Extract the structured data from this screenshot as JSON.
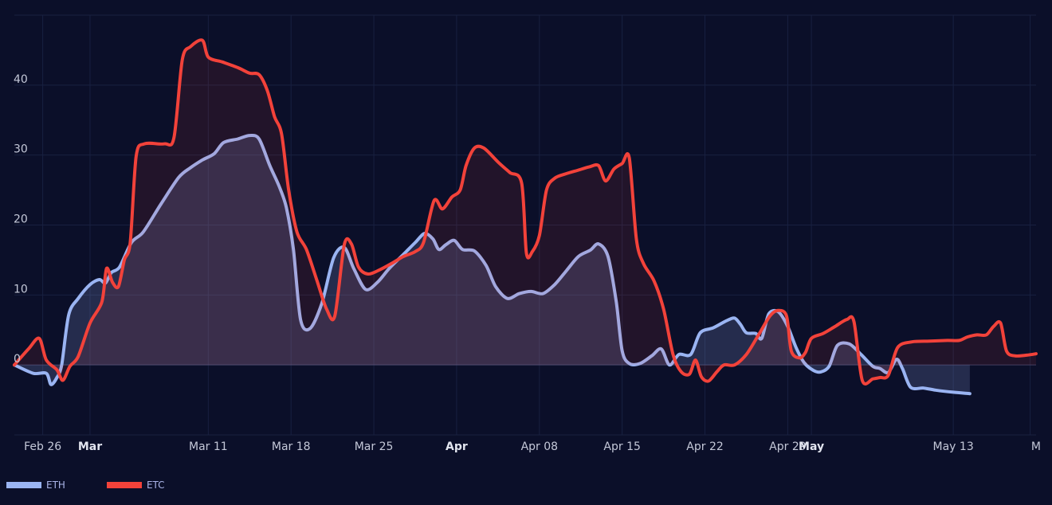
{
  "chart_data": {
    "type": "area",
    "x_tick_labels": [
      {
        "label": "Feb 26",
        "day": 0,
        "bold": false
      },
      {
        "label": "Mar",
        "day": 4,
        "bold": true
      },
      {
        "label": "Mar 11",
        "day": 14,
        "bold": false
      },
      {
        "label": "Mar 18",
        "day": 21,
        "bold": false
      },
      {
        "label": "Mar 25",
        "day": 28,
        "bold": false
      },
      {
        "label": "Apr",
        "day": 35,
        "bold": true
      },
      {
        "label": "Apr 08",
        "day": 42,
        "bold": false
      },
      {
        "label": "Apr 15",
        "day": 49,
        "bold": false
      },
      {
        "label": "Apr 22",
        "day": 56,
        "bold": false
      },
      {
        "label": "Apr 29",
        "day": 63,
        "bold": false
      },
      {
        "label": "May",
        "day": 65,
        "bold": true
      },
      {
        "label": "May 13",
        "day": 77,
        "bold": false
      },
      {
        "label": "M",
        "day": 83.5,
        "bold": false
      }
    ],
    "y_ticks": [
      0,
      10,
      20,
      30,
      40
    ],
    "xlim": [
      -2.4,
      84
    ],
    "ylim": [
      -10,
      50
    ],
    "grid": true,
    "legend_position": "bottom-left",
    "series": [
      {
        "name": "ETH",
        "color": "#9ab4f2",
        "fill": "rgba(154,180,242,0.18)",
        "points": [
          [
            -2.4,
            0.0
          ],
          [
            -0.8,
            -1.2
          ],
          [
            0.3,
            -1.2
          ],
          [
            0.7,
            -2.8
          ],
          [
            1.2,
            -1.8
          ],
          [
            1.6,
            0.0
          ],
          [
            2.2,
            7.2
          ],
          [
            3.0,
            9.5
          ],
          [
            4.0,
            11.5
          ],
          [
            4.8,
            12.2
          ],
          [
            5.3,
            11.7
          ],
          [
            5.8,
            13.2
          ],
          [
            6.5,
            14.0
          ],
          [
            7.5,
            17.5
          ],
          [
            8.5,
            19.0
          ],
          [
            10.0,
            23.0
          ],
          [
            11.5,
            26.8
          ],
          [
            12.5,
            28.2
          ],
          [
            13.5,
            29.3
          ],
          [
            14.5,
            30.2
          ],
          [
            15.3,
            31.8
          ],
          [
            16.5,
            32.3
          ],
          [
            17.5,
            32.8
          ],
          [
            18.3,
            32.3
          ],
          [
            19.2,
            28.5
          ],
          [
            20.0,
            25.5
          ],
          [
            20.6,
            22.5
          ],
          [
            21.2,
            16.5
          ],
          [
            21.8,
            6.5
          ],
          [
            22.6,
            5.2
          ],
          [
            23.6,
            8.8
          ],
          [
            24.6,
            15.3
          ],
          [
            25.5,
            16.8
          ],
          [
            26.3,
            13.8
          ],
          [
            27.3,
            10.8
          ],
          [
            28.3,
            11.8
          ],
          [
            29.3,
            13.8
          ],
          [
            30.5,
            15.8
          ],
          [
            31.5,
            17.5
          ],
          [
            32.3,
            18.8
          ],
          [
            33.0,
            18.0
          ],
          [
            33.5,
            16.5
          ],
          [
            34.1,
            17.2
          ],
          [
            34.8,
            17.8
          ],
          [
            35.5,
            16.5
          ],
          [
            36.5,
            16.3
          ],
          [
            37.5,
            14.2
          ],
          [
            38.3,
            11.2
          ],
          [
            39.3,
            9.5
          ],
          [
            40.3,
            10.2
          ],
          [
            41.3,
            10.5
          ],
          [
            42.3,
            10.2
          ],
          [
            43.3,
            11.5
          ],
          [
            44.3,
            13.5
          ],
          [
            45.3,
            15.5
          ],
          [
            46.3,
            16.4
          ],
          [
            47.0,
            17.3
          ],
          [
            47.8,
            15.5
          ],
          [
            48.5,
            9.0
          ],
          [
            49.0,
            2.0
          ],
          [
            49.6,
            0.2
          ],
          [
            50.5,
            0.2
          ],
          [
            51.5,
            1.3
          ],
          [
            52.3,
            2.3
          ],
          [
            53.0,
            0.0
          ],
          [
            53.8,
            1.5
          ],
          [
            54.8,
            1.5
          ],
          [
            55.6,
            4.6
          ],
          [
            56.7,
            5.3
          ],
          [
            57.8,
            6.3
          ],
          [
            58.5,
            6.7
          ],
          [
            59.0,
            5.8
          ],
          [
            59.5,
            4.6
          ],
          [
            60.3,
            4.5
          ],
          [
            60.8,
            3.8
          ],
          [
            61.4,
            7.3
          ],
          [
            62.2,
            7.6
          ],
          [
            63.0,
            5.5
          ],
          [
            63.7,
            2.5
          ],
          [
            64.4,
            0.3
          ],
          [
            65.2,
            -0.8
          ],
          [
            65.8,
            -1.0
          ],
          [
            66.5,
            -0.2
          ],
          [
            67.2,
            2.8
          ],
          [
            68.2,
            3.0
          ],
          [
            69.2,
            1.5
          ],
          [
            70.2,
            -0.2
          ],
          [
            70.8,
            -0.5
          ],
          [
            71.5,
            -1.1
          ],
          [
            72.2,
            0.8
          ],
          [
            72.7,
            -0.5
          ],
          [
            73.4,
            -3.2
          ],
          [
            74.5,
            -3.3
          ],
          [
            75.5,
            -3.6
          ],
          [
            77.0,
            -3.9
          ],
          [
            78.4,
            -4.1
          ]
        ]
      },
      {
        "name": "ETC",
        "color": "#f2423a",
        "fill": "rgba(242,66,58,0.10)",
        "points": [
          [
            -2.4,
            0.0
          ],
          [
            -1.2,
            2.3
          ],
          [
            -0.3,
            3.8
          ],
          [
            0.3,
            0.7
          ],
          [
            1.2,
            -0.7
          ],
          [
            1.7,
            -2.2
          ],
          [
            2.3,
            -0.2
          ],
          [
            3.0,
            1.2
          ],
          [
            4.0,
            6.0
          ],
          [
            5.0,
            9.0
          ],
          [
            5.4,
            13.8
          ],
          [
            5.9,
            11.8
          ],
          [
            6.4,
            11.2
          ],
          [
            6.9,
            15.0
          ],
          [
            7.4,
            17.5
          ],
          [
            7.9,
            29.8
          ],
          [
            8.6,
            31.6
          ],
          [
            10.3,
            31.6
          ],
          [
            11.1,
            32.5
          ],
          [
            11.8,
            43.6
          ],
          [
            12.5,
            45.5
          ],
          [
            13.5,
            46.4
          ],
          [
            14.0,
            44.0
          ],
          [
            15.2,
            43.3
          ],
          [
            16.5,
            42.5
          ],
          [
            17.5,
            41.7
          ],
          [
            18.3,
            41.5
          ],
          [
            19.0,
            39.2
          ],
          [
            19.6,
            35.5
          ],
          [
            20.2,
            33.0
          ],
          [
            20.8,
            25.0
          ],
          [
            21.5,
            19.0
          ],
          [
            22.3,
            16.5
          ],
          [
            23.2,
            12.0
          ],
          [
            24.0,
            8.0
          ],
          [
            24.7,
            7.0
          ],
          [
            25.5,
            17.2
          ],
          [
            26.1,
            17.3
          ],
          [
            26.7,
            14.0
          ],
          [
            27.5,
            13.0
          ],
          [
            28.5,
            13.6
          ],
          [
            29.5,
            14.5
          ],
          [
            30.5,
            15.5
          ],
          [
            31.5,
            16.2
          ],
          [
            32.2,
            17.5
          ],
          [
            33.1,
            23.5
          ],
          [
            33.8,
            22.3
          ],
          [
            34.6,
            24.0
          ],
          [
            35.3,
            25.0
          ],
          [
            35.8,
            28.5
          ],
          [
            36.5,
            31.0
          ],
          [
            37.3,
            31.0
          ],
          [
            38.5,
            29.0
          ],
          [
            39.5,
            27.5
          ],
          [
            40.5,
            26.0
          ],
          [
            40.9,
            16.0
          ],
          [
            41.4,
            16.2
          ],
          [
            42.0,
            18.5
          ],
          [
            42.6,
            25.0
          ],
          [
            43.3,
            26.7
          ],
          [
            44.2,
            27.3
          ],
          [
            45.2,
            27.8
          ],
          [
            46.2,
            28.3
          ],
          [
            47.0,
            28.5
          ],
          [
            47.6,
            26.3
          ],
          [
            48.3,
            28.0
          ],
          [
            49.0,
            28.8
          ],
          [
            49.6,
            29.6
          ],
          [
            50.2,
            18.0
          ],
          [
            50.8,
            14.5
          ],
          [
            51.7,
            12.0
          ],
          [
            52.5,
            8.0
          ],
          [
            53.3,
            1.5
          ],
          [
            54.0,
            -1.0
          ],
          [
            54.7,
            -1.3
          ],
          [
            55.2,
            0.7
          ],
          [
            55.7,
            -1.7
          ],
          [
            56.3,
            -2.3
          ],
          [
            57.0,
            -1.0
          ],
          [
            57.6,
            0.0
          ],
          [
            58.5,
            0.0
          ],
          [
            59.5,
            1.5
          ],
          [
            60.5,
            4.2
          ],
          [
            61.5,
            7.0
          ],
          [
            62.2,
            7.8
          ],
          [
            62.9,
            7.0
          ],
          [
            63.3,
            2.0
          ],
          [
            64.0,
            1.0
          ],
          [
            64.5,
            1.8
          ],
          [
            65.0,
            3.8
          ],
          [
            66.0,
            4.5
          ],
          [
            67.0,
            5.5
          ],
          [
            68.0,
            6.5
          ],
          [
            68.6,
            6.2
          ],
          [
            69.3,
            -2.2
          ],
          [
            70.2,
            -2.0
          ],
          [
            70.8,
            -1.8
          ],
          [
            71.5,
            -1.5
          ],
          [
            72.3,
            2.5
          ],
          [
            73.5,
            3.3
          ],
          [
            75.0,
            3.4
          ],
          [
            76.5,
            3.5
          ],
          [
            77.5,
            3.5
          ],
          [
            78.2,
            4.0
          ],
          [
            79.0,
            4.3
          ],
          [
            79.8,
            4.3
          ],
          [
            80.4,
            5.5
          ],
          [
            81.0,
            6.0
          ],
          [
            81.5,
            2.0
          ],
          [
            82.2,
            1.3
          ],
          [
            83.2,
            1.4
          ],
          [
            84.0,
            1.6
          ]
        ]
      }
    ]
  }
}
